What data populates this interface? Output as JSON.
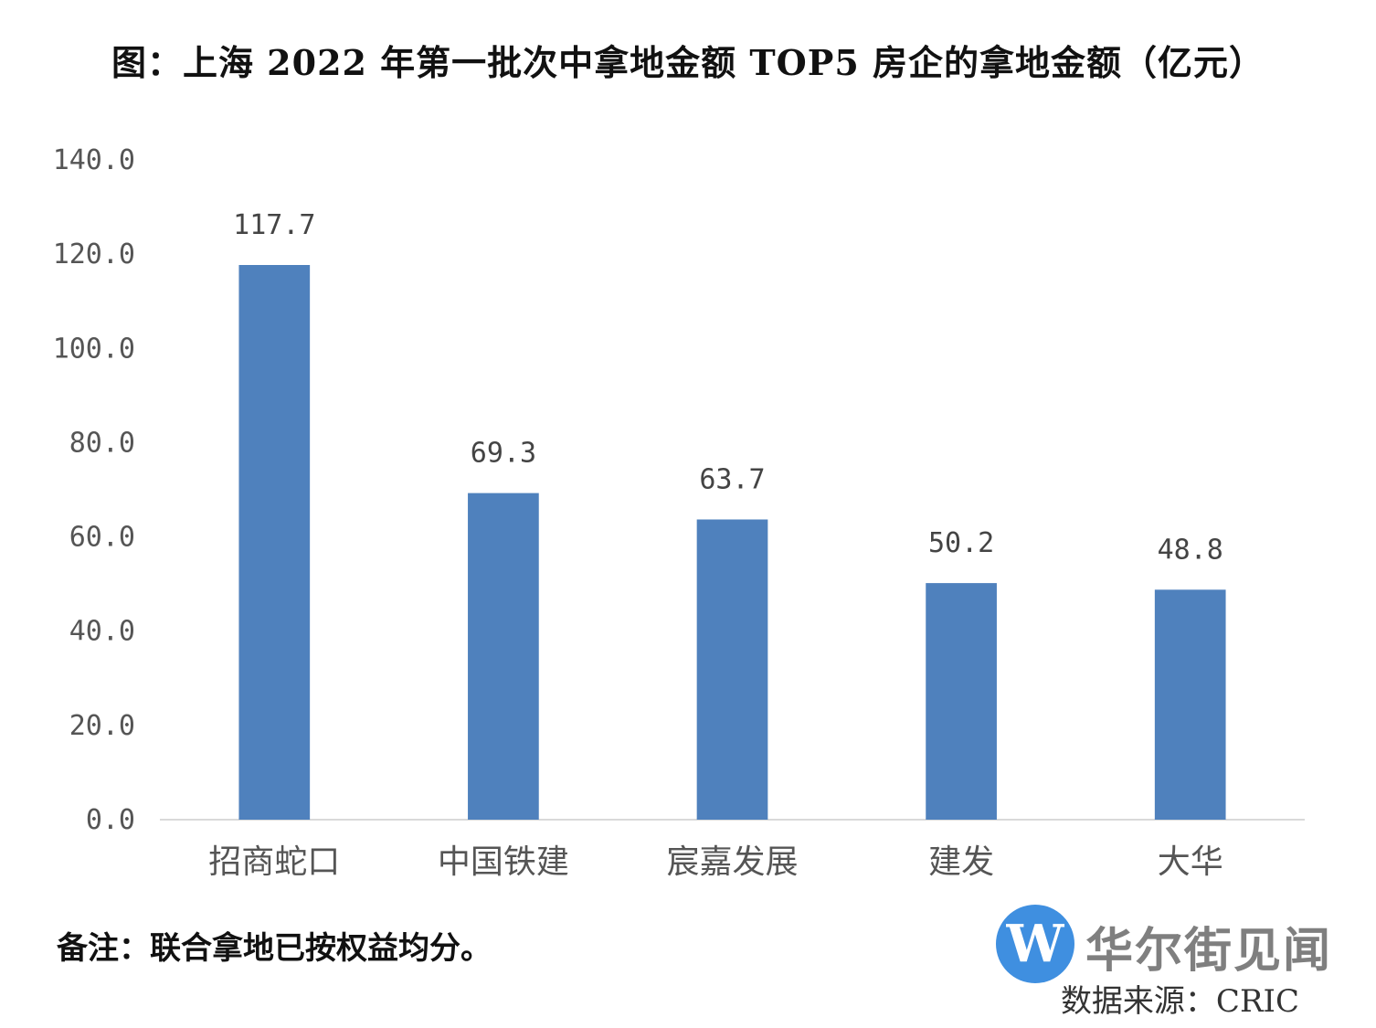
{
  "chart_data": {
    "type": "bar",
    "title": "图：上海 2022 年第一批次中拿地金额 TOP5 房企的拿地金额（亿元）",
    "categories": [
      "招商蛇口",
      "中国铁建",
      "宸嘉发展",
      "建发",
      "大华"
    ],
    "values": [
      117.7,
      69.3,
      63.7,
      50.2,
      48.8
    ],
    "value_labels": [
      "117.7",
      "69.3",
      "63.7",
      "50.2",
      "48.8"
    ],
    "ylim": [
      0,
      140
    ],
    "yticks": [
      "0.0",
      "20.0",
      "40.0",
      "60.0",
      "80.0",
      "100.0",
      "120.0",
      "140.0"
    ],
    "grid": false,
    "bar_color": "#4f81bd"
  },
  "note": "备注：联合拿地已按权益均分。",
  "source": "数据来源：CRIC",
  "logo": {
    "mark": "W",
    "text": "华尔街见闻",
    "color": "#3f8fe0"
  }
}
